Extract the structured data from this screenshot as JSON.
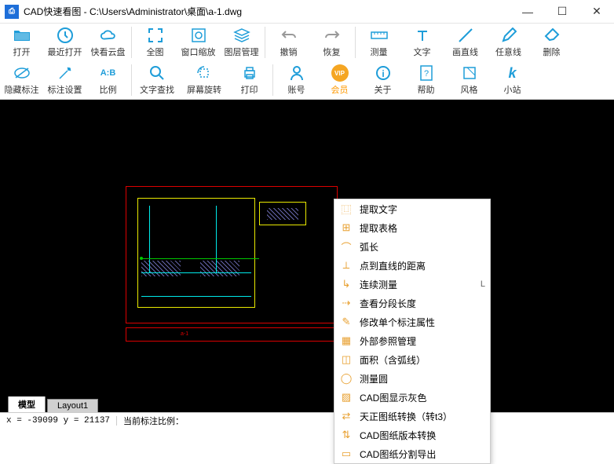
{
  "title": "CAD快速看图 - C:\\Users\\Administrator\\桌面\\a-1.dwg",
  "toolbar": {
    "row1": [
      {
        "id": "open",
        "label": "打开"
      },
      {
        "id": "recent",
        "label": "最近打开"
      },
      {
        "id": "cloud",
        "label": "快看云盘"
      },
      {
        "id": "full",
        "label": "全图"
      },
      {
        "id": "winzoom",
        "label": "窗口缩放"
      },
      {
        "id": "layers",
        "label": "图层管理"
      },
      {
        "id": "undo",
        "label": "撤销"
      },
      {
        "id": "redo",
        "label": "恢复"
      },
      {
        "id": "measure",
        "label": "测量"
      },
      {
        "id": "text",
        "label": "文字"
      },
      {
        "id": "drawline",
        "label": "画直线"
      },
      {
        "id": "freeline",
        "label": "任意线"
      },
      {
        "id": "delete",
        "label": "删除"
      }
    ],
    "row2": [
      {
        "id": "hideann",
        "label": "隐藏标注"
      },
      {
        "id": "annsettings",
        "label": "标注设置"
      },
      {
        "id": "scale",
        "label": "比例"
      },
      {
        "id": "textsearch",
        "label": "文字查找"
      },
      {
        "id": "rotate",
        "label": "屏幕旋转"
      },
      {
        "id": "print",
        "label": "打印"
      },
      {
        "id": "account",
        "label": "账号"
      },
      {
        "id": "vip",
        "label": "会员"
      },
      {
        "id": "about",
        "label": "关于"
      },
      {
        "id": "help",
        "label": "帮助"
      },
      {
        "id": "style",
        "label": "风格"
      },
      {
        "id": "xiaozhan",
        "label": "小站"
      }
    ]
  },
  "menu": [
    {
      "label": "提取文字",
      "key": ""
    },
    {
      "label": "提取表格",
      "key": ""
    },
    {
      "label": "弧长",
      "key": ""
    },
    {
      "label": "点到直线的距离",
      "key": ""
    },
    {
      "label": "连续测量",
      "key": "L"
    },
    {
      "label": "查看分段长度",
      "key": ""
    },
    {
      "label": "修改单个标注属性",
      "key": ""
    },
    {
      "label": "外部参照管理",
      "key": ""
    },
    {
      "label": "面积（含弧线）",
      "key": ""
    },
    {
      "label": "测量圆",
      "key": ""
    },
    {
      "label": "CAD图显示灰色",
      "key": ""
    },
    {
      "label": "天正图纸转换（转t3）",
      "key": ""
    },
    {
      "label": "CAD图纸版本转换",
      "key": ""
    },
    {
      "label": "CAD图纸分割导出",
      "key": ""
    }
  ],
  "tabs": [
    {
      "label": "模型",
      "active": true
    },
    {
      "label": "Layout1",
      "active": false
    }
  ],
  "status": {
    "coord": "x = -39099 y = 21137",
    "ratio": "当前标注比例："
  }
}
